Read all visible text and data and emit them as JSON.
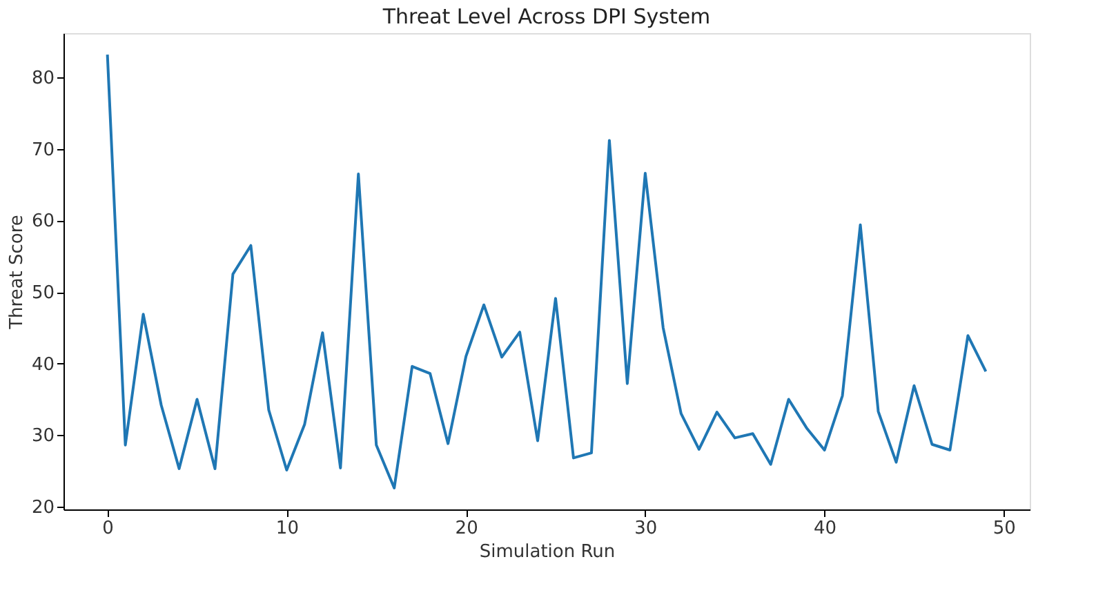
{
  "chart_data": {
    "type": "line",
    "title": "Threat Level Across DPI System",
    "xlabel": "Simulation Run",
    "ylabel": "Threat Score",
    "x": [
      0,
      1,
      2,
      3,
      4,
      5,
      6,
      7,
      8,
      9,
      10,
      11,
      12,
      13,
      14,
      15,
      16,
      17,
      18,
      19,
      20,
      21,
      22,
      23,
      24,
      25,
      26,
      27,
      28,
      29,
      30,
      31,
      32,
      33,
      34,
      35,
      36,
      37,
      38,
      39,
      40,
      41,
      42,
      43,
      44,
      45,
      46,
      47,
      48,
      49
    ],
    "series": [
      {
        "color": "#1f77b4",
        "values": [
          83.2,
          28.6,
          46.9,
          34.2,
          25.3,
          35,
          25.3,
          52.5,
          56.5,
          33.5,
          25.1,
          31.5,
          44.3,
          25.4,
          66.5,
          28.6,
          22.6,
          39.6,
          38.6,
          28.8,
          41,
          48.2,
          40.9,
          44.4,
          29.2,
          49.1,
          26.8,
          27.5,
          71.2,
          37.2,
          66.6,
          45,
          33,
          28,
          33.2,
          29.6,
          30.2,
          25.9,
          35,
          31,
          27.9,
          35.5,
          59.4,
          33.3,
          26.2,
          36.9,
          28.7,
          27.9,
          43.9,
          38.9
        ]
      }
    ],
    "xlim": [
      -2.45,
      51.45
    ],
    "ylim": [
      19.6,
      86.2
    ],
    "xticks": [
      0,
      10,
      20,
      30,
      40,
      50
    ],
    "yticks": [
      20,
      30,
      40,
      50,
      60,
      70,
      80
    ],
    "grid": false,
    "marker": "none",
    "line_style": "solid"
  }
}
